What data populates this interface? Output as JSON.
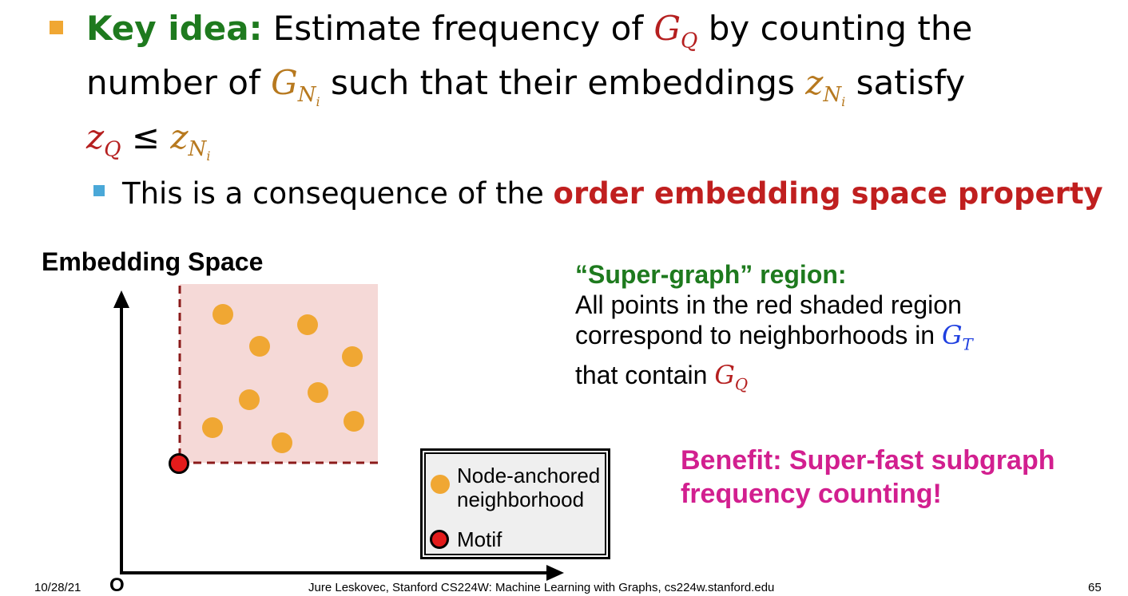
{
  "bullet1": {
    "lead": "Key idea:",
    "t1": "Estimate frequency of",
    "gq_base": "G",
    "gq_sub": "Q",
    "t2": "by counting the",
    "t3": "number of",
    "gni_base": "G",
    "gni_sub": "N",
    "gni_subsub": "i",
    "t4": "such that their embeddings",
    "zni_base": "z",
    "zni_sub": "N",
    "zni_subsub": "i",
    "t5": "satisfy",
    "zq_base": "z",
    "zq_sub": "Q",
    "leq": "≤",
    "zni2_base": "z",
    "zni2_sub": "N",
    "zni2_subsub": "i"
  },
  "bullet2": {
    "t1": "This is a consequence of the",
    "highlight": "order embedding space property"
  },
  "diagram": {
    "title": "Embedding Space",
    "origin_label": "O",
    "legend": {
      "item1": "Node-anchored neighborhood",
      "item2": "Motif"
    },
    "colors": {
      "region": "#f5d9d7",
      "neighborhood": "#f0a733",
      "motif": "#e31b1b"
    }
  },
  "right": {
    "title": "“Super-graph” region:",
    "line1": "All points in the red shaded region",
    "line2": "correspond to neighborhoods in",
    "gt_base": "G",
    "gt_sub": "T",
    "line3": "that contain",
    "gq_base": "G",
    "gq_sub": "Q"
  },
  "benefit": {
    "line1": "Benefit: Super-fast subgraph",
    "line2": "frequency counting!"
  },
  "footer": {
    "date": "10/28/21",
    "credit": "Jure Leskovec, Stanford CS224W: Machine Learning with Graphs, cs224w.stanford.edu",
    "page": "65"
  }
}
